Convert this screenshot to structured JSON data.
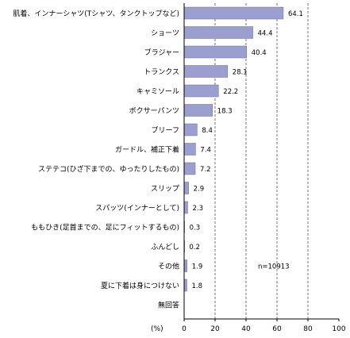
{
  "chart_data": {
    "type": "bar",
    "orientation": "horizontal",
    "categories": [
      "肌着、インナーシャツ(Tシャツ、タンクトップなど)",
      "ショーツ",
      "ブラジャー",
      "トランクス",
      "キャミソール",
      "ボクサーパンツ",
      "ブリーフ",
      "ガードル、補正下着",
      "ステテコ(ひざ下までの、ゆったりしたもの)",
      "スリップ",
      "スパッツ(インナーとして)",
      "ももひき(足首までの、足にフィットするもの)",
      "ふんどし",
      "その他",
      "夏に下着は身につけない",
      "無回答"
    ],
    "values": [
      64.1,
      44.4,
      40.4,
      28.1,
      22.2,
      18.3,
      8.4,
      7.4,
      7.2,
      2.9,
      2.3,
      0.3,
      0.2,
      1.9,
      1.8,
      null
    ],
    "value_labels": [
      "64.1",
      "44.4",
      "40.4",
      "28.1",
      "22.2",
      "18.3",
      "8.4",
      "7.4",
      "7.2",
      "2.9",
      "2.3",
      "0.3",
      "0.2",
      "1.9",
      "1.8",
      ""
    ],
    "x_ticks": [
      "0",
      "20",
      "40",
      "60",
      "80",
      "100"
    ],
    "xlim": [
      0,
      100
    ],
    "unit_label": "(%)",
    "note": "n=10913",
    "grid": "vertical dashed",
    "bar_color": "#9a9fcf",
    "bar_border_color": "#6a6f9f"
  }
}
